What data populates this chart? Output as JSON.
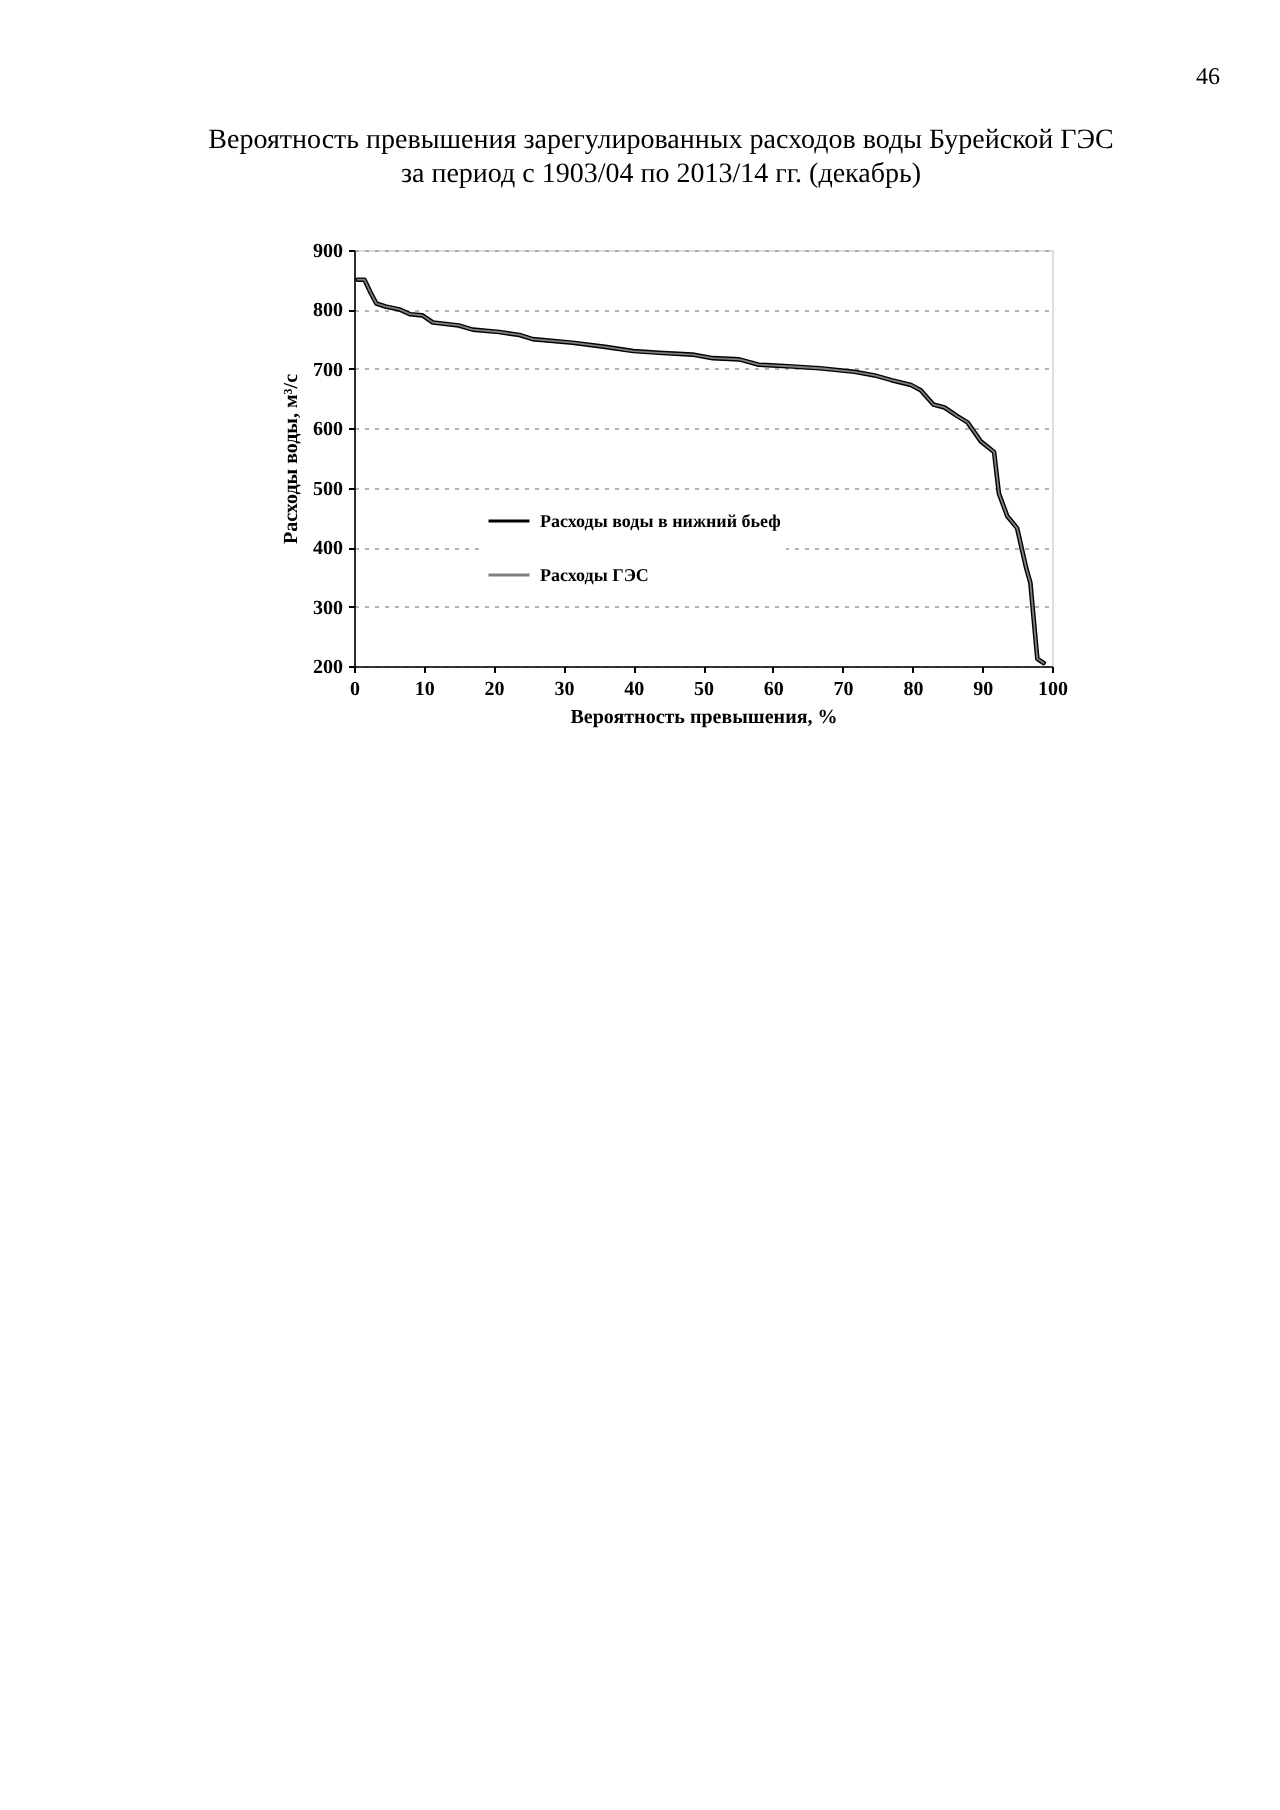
{
  "chart_data": {
    "type": "line",
    "title": "Вероятность превышения зарегулированных расходов воды Бурейской ГЭС\nза период с 1903/04 по 2013/14 гг. (декабрь)",
    "xlabel": "Вероятность превышения, %",
    "ylabel": "Расходы воды, м³/с",
    "annotations": [
      "46"
    ],
    "x": [
      0.5,
      1.5,
      2.3,
      3.2,
      4.5,
      6.5,
      8,
      9.8,
      11.3,
      15,
      17,
      20.8,
      23.7,
      25.6,
      31.3,
      36,
      40,
      43.7,
      48.5,
      51.4,
      55.2,
      58,
      62.8,
      66.7,
      71.7,
      74.6,
      77,
      79.8,
      81.2,
      83,
      84.6,
      86.5,
      87.9,
      89.8,
      91.7,
      92.4,
      93.6,
      95,
      96.3,
      96.9,
      97.9,
      98.8
    ],
    "series": [
      {
        "name": "Расходы воды в нижний бьеф",
        "color": "#000000",
        "values": [
          850,
          850,
          830,
          810,
          805,
          800,
          792,
          790,
          778,
          773,
          766,
          762,
          757,
          750,
          744,
          737,
          730,
          727,
          724,
          718,
          716,
          707,
          704,
          701,
          695,
          689,
          681,
          673,
          664,
          640,
          635,
          620,
          610,
          578,
          560,
          490,
          452,
          432,
          365,
          340,
          212,
          205
        ]
      },
      {
        "name": "Расходы ГЭС",
        "color": "#808080",
        "values": [
          850,
          850,
          830,
          810,
          805,
          800,
          792,
          790,
          778,
          773,
          766,
          762,
          757,
          750,
          744,
          737,
          730,
          727,
          724,
          718,
          716,
          707,
          704,
          701,
          695,
          689,
          681,
          673,
          664,
          640,
          635,
          620,
          610,
          578,
          560,
          490,
          452,
          432,
          365,
          340,
          212,
          205
        ]
      }
    ],
    "xlim": [
      0,
      100
    ],
    "xticks": [
      0,
      10,
      20,
      30,
      40,
      50,
      60,
      70,
      80,
      90,
      100
    ],
    "ylim": [
      200,
      900
    ],
    "yticks": [
      200,
      300,
      400,
      500,
      600,
      700,
      800,
      900
    ],
    "grid": "y",
    "legend": "bottom left",
    "marker": "none",
    "line_style": "solid"
  }
}
